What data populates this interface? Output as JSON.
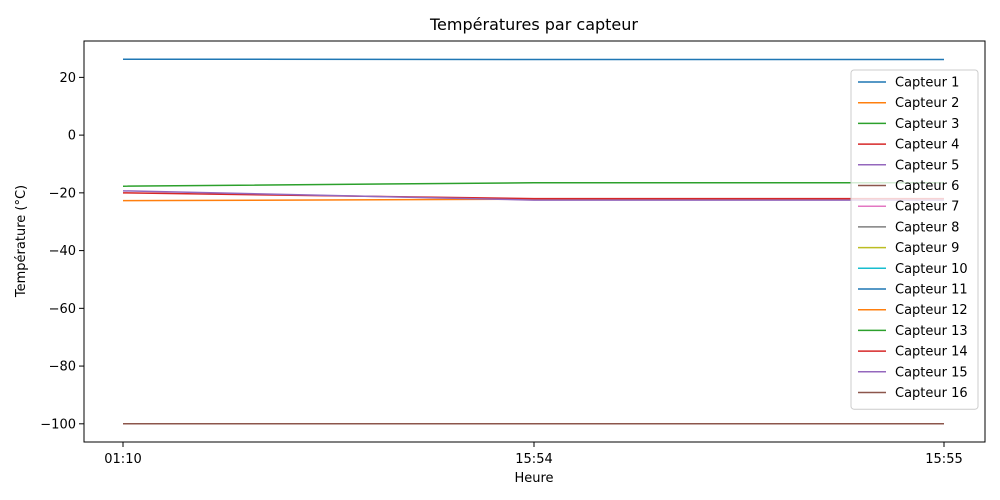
{
  "chart_data": {
    "type": "line",
    "title": "Températures par capteur",
    "xlabel": "Heure",
    "ylabel": "Température (°C)",
    "categories": [
      "01:10",
      "15:54",
      "15:55"
    ],
    "yticks": [
      20,
      0,
      -20,
      -40,
      -60,
      -80,
      -100
    ],
    "ylim": [
      -106.3,
      32.6
    ],
    "grid": false,
    "legend_position": "right",
    "series": [
      {
        "name": "Capteur 1",
        "color": "#1f77b4",
        "values": [
          26.3,
          26.2,
          26.2
        ]
      },
      {
        "name": "Capteur 2",
        "color": "#ff7f0e",
        "values": [
          -22.7,
          -22.2,
          -22.2
        ]
      },
      {
        "name": "Capteur 3",
        "color": "#2ca02c",
        "values": [
          -17.7,
          -16.5,
          -16.5
        ]
      },
      {
        "name": "Capteur 4",
        "color": "#d62728",
        "values": [
          -20.0,
          -22.0,
          -22.0
        ]
      },
      {
        "name": "Capteur 5",
        "color": "#9467bd",
        "values": [
          -19.3,
          -22.5,
          -22.5
        ]
      },
      {
        "name": "Capteur 6",
        "color": "#8c564b",
        "values": [
          -100,
          -100,
          -100
        ]
      },
      {
        "name": "Capteur 7",
        "color": "#e377c2",
        "values": [
          -100,
          -100,
          -100
        ]
      },
      {
        "name": "Capteur 8",
        "color": "#7f7f7f",
        "values": [
          -100,
          -100,
          -100
        ]
      },
      {
        "name": "Capteur 9",
        "color": "#bcbd22",
        "values": [
          -100,
          -100,
          -100
        ]
      },
      {
        "name": "Capteur 10",
        "color": "#17becf",
        "values": [
          -100,
          -100,
          -100
        ]
      },
      {
        "name": "Capteur 11",
        "color": "#1f77b4",
        "values": [
          -100,
          -100,
          -100
        ]
      },
      {
        "name": "Capteur 12",
        "color": "#ff7f0e",
        "values": [
          -100,
          -100,
          -100
        ]
      },
      {
        "name": "Capteur 13",
        "color": "#2ca02c",
        "values": [
          -100,
          -100,
          -100
        ]
      },
      {
        "name": "Capteur 14",
        "color": "#d62728",
        "values": [
          -100,
          -100,
          -100
        ]
      },
      {
        "name": "Capteur 15",
        "color": "#9467bd",
        "values": [
          -100,
          -100,
          -100
        ]
      },
      {
        "name": "Capteur 16",
        "color": "#8c564b",
        "values": [
          -100,
          -100,
          -100
        ]
      }
    ]
  }
}
